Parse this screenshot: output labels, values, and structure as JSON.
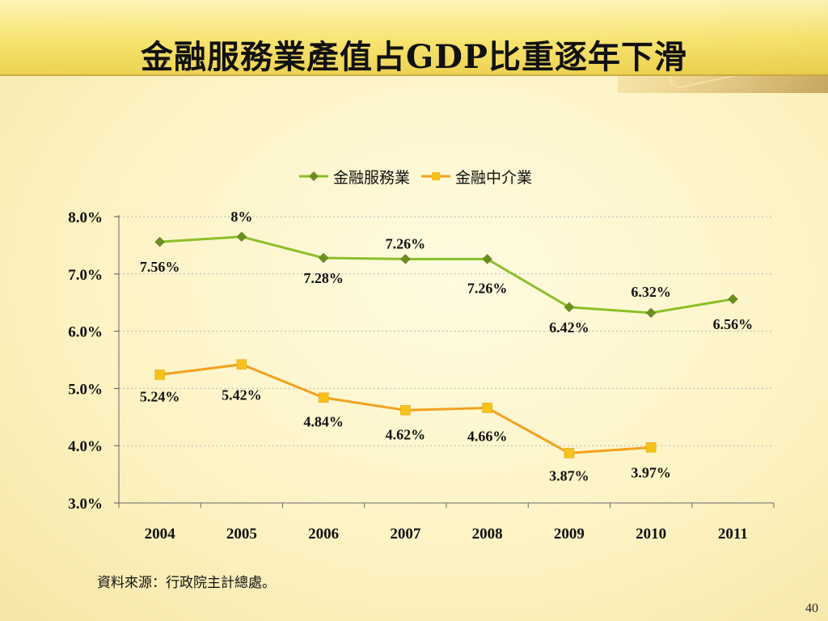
{
  "slide": {
    "title": "金融服務業產值占GDP比重逐年下滑",
    "source_note": "資料來源：行政院主計總處。",
    "page_number": "40"
  },
  "colors": {
    "finance_services": "#8cbf28",
    "finance_services_marker": "#6b8e1f",
    "finance_intermediary": "#f2a21f",
    "finance_intermediary_marker": "#f6c21a",
    "gridline": "#b8b8b8"
  },
  "chart_data": {
    "type": "line",
    "title": "",
    "xlabel": "",
    "ylabel": "",
    "categories": [
      "2004",
      "2005",
      "2006",
      "2007",
      "2008",
      "2009",
      "2010",
      "2011"
    ],
    "y_ticks": [
      "3.0%",
      "4.0%",
      "5.0%",
      "6.0%",
      "7.0%",
      "8.0%"
    ],
    "ylim": [
      3.0,
      8.0
    ],
    "grid": "horizontal dotted",
    "legend_position": "top",
    "series": [
      {
        "name": "金融服務業",
        "values": [
          7.56,
          7.65,
          7.28,
          7.26,
          7.26,
          6.42,
          6.32,
          6.56
        ],
        "labels": [
          "7.56%",
          "8%",
          "7.28%",
          "7.26%",
          "7.26%",
          "6.42%",
          "6.32%",
          "6.56%"
        ],
        "marker": "diamond"
      },
      {
        "name": "金融中介業",
        "values": [
          5.24,
          5.42,
          4.84,
          4.62,
          4.66,
          3.87,
          3.97,
          null
        ],
        "labels": [
          "5.24%",
          "5.42%",
          "4.84%",
          "4.62%",
          "4.66%",
          "3.87%",
          "3.97%",
          null
        ],
        "marker": "square"
      }
    ]
  }
}
